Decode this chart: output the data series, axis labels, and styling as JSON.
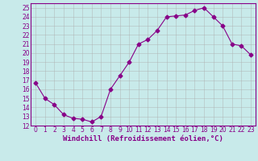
{
  "x": [
    0,
    1,
    2,
    3,
    4,
    5,
    6,
    7,
    8,
    9,
    10,
    11,
    12,
    13,
    14,
    15,
    16,
    17,
    18,
    19,
    20,
    21,
    22,
    23
  ],
  "y": [
    16.7,
    15.0,
    14.3,
    13.2,
    12.8,
    12.7,
    12.4,
    13.0,
    16.0,
    17.5,
    19.0,
    21.0,
    21.5,
    22.5,
    24.0,
    24.1,
    24.2,
    24.7,
    25.0,
    24.0,
    23.0,
    21.0,
    20.8,
    19.8
  ],
  "line_color": "#880088",
  "marker": "D",
  "marker_size": 2.5,
  "bg_color": "#c8eaea",
  "grid_color": "#aaaaaa",
  "xlabel": "Windchill (Refroidissement éolien,°C)",
  "ylim": [
    12,
    25.5
  ],
  "yticks": [
    12,
    13,
    14,
    15,
    16,
    17,
    18,
    19,
    20,
    21,
    22,
    23,
    24,
    25
  ],
  "xticks": [
    0,
    1,
    2,
    3,
    4,
    5,
    6,
    7,
    8,
    9,
    10,
    11,
    12,
    13,
    14,
    15,
    16,
    17,
    18,
    19,
    20,
    21,
    22,
    23
  ],
  "tick_fontsize": 5.5,
  "xlabel_fontsize": 6.5,
  "xlabel_color": "#880088"
}
